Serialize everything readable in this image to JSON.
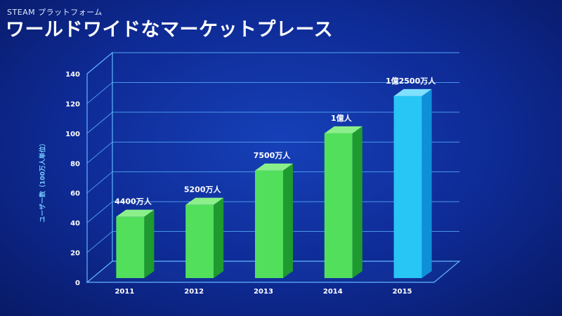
{
  "slide": {
    "kicker": "STEAM プラットフォーム",
    "title": "ワールドワイドなマーケットプレース"
  },
  "chart_data": {
    "type": "bar",
    "categories": [
      "2011",
      "2012",
      "2013",
      "2014",
      "2015"
    ],
    "values": [
      44,
      52,
      75,
      100,
      125
    ],
    "data_labels": [
      "4400万人",
      "5200万人",
      "7500万人",
      "1億人",
      "1億2500万人"
    ],
    "ylabel": "ユーザー数（100万人単位）",
    "ylim": [
      0,
      140
    ],
    "yticks": [
      0,
      20,
      40,
      60,
      80,
      100,
      120,
      140
    ],
    "grid": true,
    "colors": {
      "bar_front": "#52e05c",
      "bar_side": "#1f9a2f",
      "bar_top": "#8cf08a",
      "highlight_front": "#27c6f4",
      "highlight_side": "#0f8fd8",
      "highlight_top": "#7fe0ff",
      "axis": "#5fb8ff"
    },
    "highlight_index": 4
  }
}
